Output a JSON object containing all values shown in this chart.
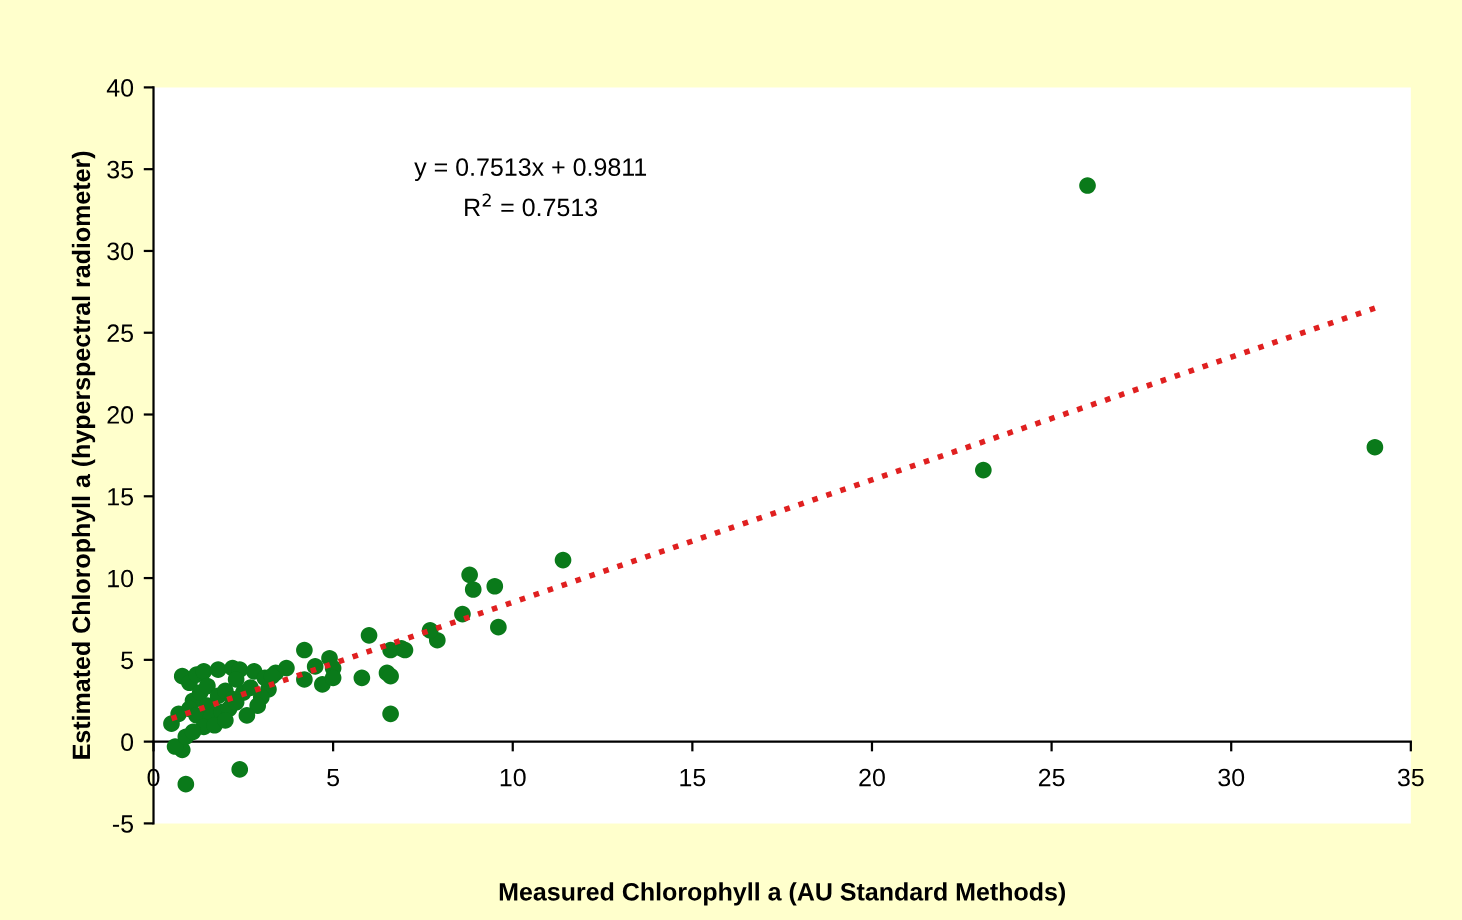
{
  "chart_data": {
    "type": "scatter",
    "xlabel": "Measured Chlorophyll a (AU Standard Methods)",
    "ylabel": "Estimated Chlorophyll a (hyperspectral radiometer)",
    "annotations": [
      "y = 0.7513x + 0.9811",
      "R$^{2}$ = 0.7513"
    ],
    "xlim": [
      0,
      35
    ],
    "ylim": [
      -5,
      40
    ],
    "xticks": [
      0,
      5,
      10,
      15,
      20,
      25,
      30,
      35
    ],
    "yticks": [
      -5,
      0,
      5,
      10,
      15,
      20,
      25,
      30,
      35,
      40
    ],
    "grid": false,
    "series": [
      {
        "color": "#0a7a1a",
        "marker": "circle",
        "x": [
          26,
          34,
          23.1,
          11.4,
          9.5,
          8.8,
          8.9,
          8.6,
          9.6,
          7.9,
          7.7,
          6.0,
          6.9,
          6.6,
          7.0,
          6.5,
          6.6,
          6.6,
          5.8,
          4.9,
          5.0,
          4.5,
          4.2,
          4.7,
          5.0,
          4.2,
          3.7,
          3.4,
          3.2,
          3.0,
          2.9,
          2.6,
          2.4,
          0.9,
          0.8,
          0.6,
          0.5,
          0.7,
          0.8,
          1.0,
          1.2,
          1.4,
          1.8,
          2.2,
          2.4,
          2.8,
          1.1,
          1.3,
          1.5,
          2.3,
          1.0,
          1.2,
          1.5,
          1.8,
          2.0,
          2.2,
          2.5,
          2.7,
          3.1,
          3.3,
          1.6,
          1.9,
          2.1,
          1.4,
          1.7,
          2.0,
          2.3,
          0.9,
          1.1
        ],
        "values": [
          34,
          18,
          16.6,
          11.1,
          9.5,
          10.2,
          9.3,
          7.8,
          7.0,
          6.2,
          6.8,
          6.5,
          5.7,
          5.6,
          5.6,
          4.2,
          4.0,
          1.7,
          3.9,
          5.1,
          4.5,
          4.6,
          5.6,
          3.5,
          3.9,
          3.8,
          4.5,
          4.2,
          3.2,
          2.7,
          2.2,
          1.6,
          -1.7,
          -2.6,
          -0.5,
          -0.3,
          1.1,
          1.7,
          4.0,
          3.6,
          4.1,
          4.3,
          4.4,
          4.5,
          4.4,
          4.3,
          2.5,
          3.0,
          3.4,
          3.8,
          2.0,
          1.6,
          2.2,
          2.8,
          3.1,
          2.6,
          3.0,
          3.3,
          3.9,
          4.0,
          1.5,
          1.8,
          2.0,
          0.9,
          1.0,
          1.3,
          2.4,
          0.3,
          0.6
        ]
      },
      {
        "type": "line",
        "color": "#e02020",
        "line_style": "dotted",
        "x": [
          0.5,
          34
        ],
        "values": [
          1.4,
          26.5
        ]
      }
    ]
  }
}
